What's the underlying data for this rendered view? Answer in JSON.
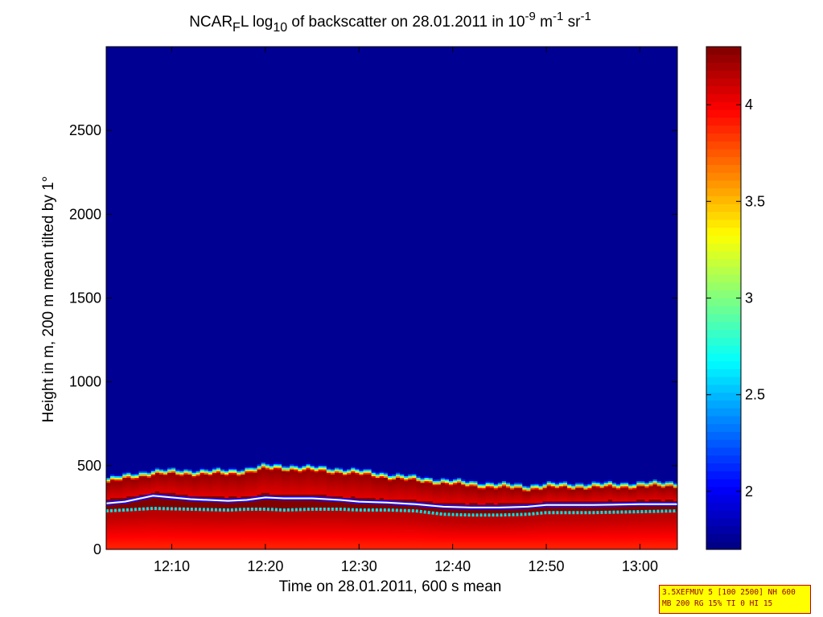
{
  "chart_data": {
    "type": "heatmap",
    "title": {
      "p1": "NCAR",
      "sub1": "F",
      "p2": "L log",
      "sub2": "10",
      "p3": " of backscatter on 28.01.2011 in 10",
      "sup1": "-9",
      "p4": " m",
      "sup2": "-1",
      "p5": " sr",
      "sup3": "-1"
    },
    "xlabel": "Time on 28.01.2011, 600 s mean",
    "ylabel": "Height in m, 200 m mean tilted by 1°",
    "xlim": [
      "12:03",
      "13:04"
    ],
    "ylim": [
      0,
      3000
    ],
    "x_ticks": [
      "12:10",
      "12:20",
      "12:30",
      "12:40",
      "12:50",
      "13:00"
    ],
    "y_ticks": [
      0,
      500,
      1000,
      1500,
      2000,
      2500
    ],
    "colorbar": {
      "clim": [
        1.7,
        4.3
      ],
      "ticks": [
        2,
        2.5,
        3,
        3.5,
        4
      ],
      "tick_labels": [
        "2",
        "2.5",
        "3",
        "3.5",
        "4"
      ]
    },
    "background_value": 1.75,
    "profile": {
      "time": [
        "12:03",
        "12:05",
        "12:08",
        "12:12",
        "12:16",
        "12:18",
        "12:20",
        "12:22",
        "12:25",
        "12:28",
        "12:30",
        "12:33",
        "12:36",
        "12:39",
        "12:42",
        "12:45",
        "12:48",
        "12:50",
        "12:55",
        "13:00",
        "13:04"
      ],
      "aerosol_top_m": [
        390,
        410,
        440,
        440,
        440,
        450,
        470,
        470,
        460,
        450,
        440,
        420,
        400,
        385,
        370,
        360,
        350,
        360,
        360,
        365,
        370
      ],
      "layer_line_m": [
        275,
        285,
        320,
        300,
        290,
        295,
        310,
        305,
        305,
        295,
        285,
        280,
        270,
        255,
        250,
        250,
        255,
        265,
        265,
        270,
        270
      ],
      "lower_line_m": [
        230,
        235,
        245,
        240,
        235,
        240,
        240,
        235,
        240,
        240,
        235,
        235,
        230,
        210,
        205,
        205,
        210,
        220,
        220,
        225,
        230
      ]
    }
  },
  "info_box": {
    "line1": "3.5XEFMUV 5 [100 2500] NH 600",
    "line2": "MB 200 RG 15% TI 0 HI 15"
  }
}
